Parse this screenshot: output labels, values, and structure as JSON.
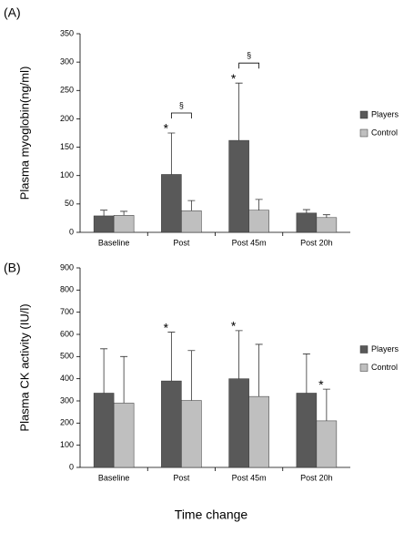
{
  "xlabel": "Time change",
  "chart_data": [
    {
      "type": "bar",
      "panel": "(A)",
      "ylabel": "Plasma myoglobin(ng/ml)",
      "categories": [
        "Baseline",
        "Post",
        "Post 45m",
        "Post 20h"
      ],
      "ylim": [
        0,
        350
      ],
      "yticks": [
        0,
        50,
        100,
        150,
        200,
        250,
        300,
        350
      ],
      "legend": "right",
      "series": [
        {
          "name": "Players",
          "color": "#595959",
          "values": [
            29,
            102,
            162,
            34
          ],
          "errors": [
            10,
            73,
            101,
            6
          ],
          "annotations": [
            null,
            "*",
            "*",
            null
          ]
        },
        {
          "name": "Control",
          "color": "#bfbfbf",
          "values": [
            30,
            38,
            39,
            26
          ],
          "errors": [
            7,
            18,
            19,
            5
          ],
          "annotations": [
            null,
            null,
            null,
            null
          ]
        }
      ],
      "bracket_labels": [
        null,
        "§",
        "§",
        null
      ]
    },
    {
      "type": "bar",
      "panel": "(B)",
      "ylabel": "Plasma CK activity (IU/l)",
      "categories": [
        "Baseline",
        "Post",
        "Post 45m",
        "Post 20h"
      ],
      "ylim": [
        0,
        900
      ],
      "yticks": [
        0,
        100,
        200,
        300,
        400,
        500,
        600,
        700,
        800,
        900
      ],
      "legend": "right",
      "series": [
        {
          "name": "Players",
          "color": "#595959",
          "values": [
            335,
            390,
            400,
            335
          ],
          "errors": [
            200,
            220,
            217,
            177
          ],
          "annotations": [
            null,
            "*",
            "*",
            null
          ]
        },
        {
          "name": "Control",
          "color": "#bfbfbf",
          "values": [
            290,
            302,
            320,
            210
          ],
          "errors": [
            210,
            225,
            235,
            143
          ],
          "annotations": [
            null,
            null,
            null,
            "*"
          ]
        }
      ]
    }
  ]
}
